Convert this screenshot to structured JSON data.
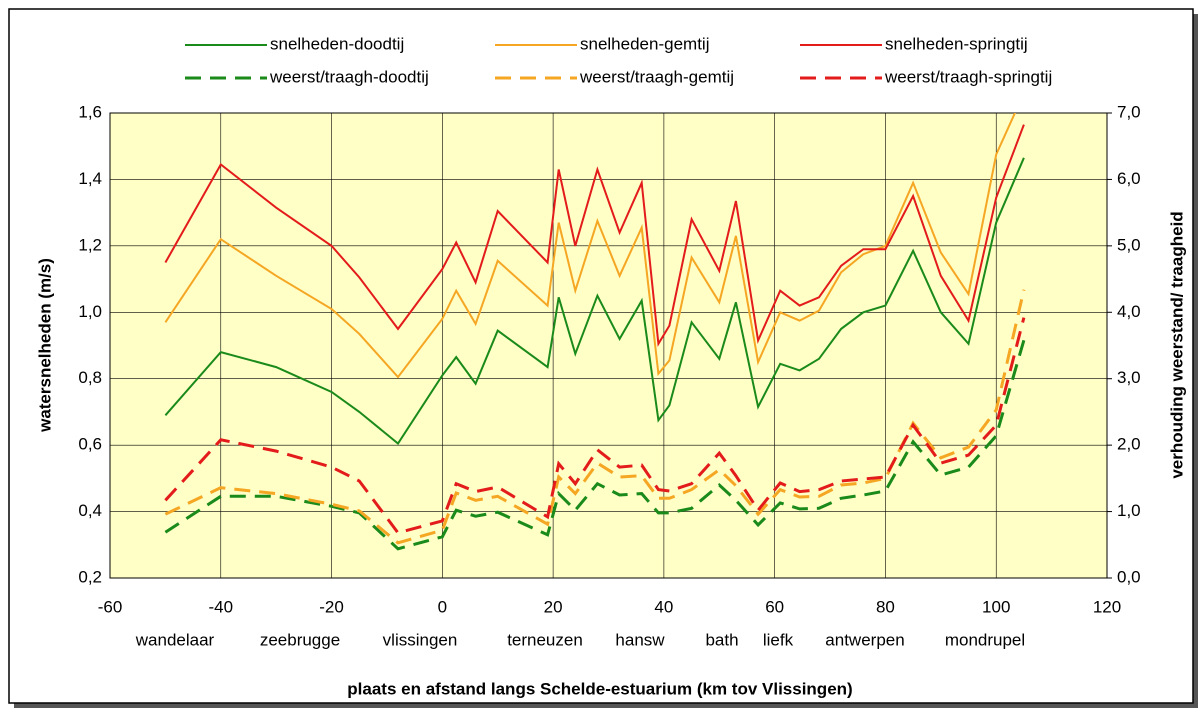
{
  "chart_data": {
    "type": "line",
    "y_label": "watersnelheden (m/s)",
    "y2_label": "verhouding weerstand/ traagheid",
    "x_label": "plaats en afstand  langs Schelde-estuarium (km tov Vlissingen)",
    "locations": [
      "wandelaar",
      "zeebrugge",
      "vlissingen",
      "terneuzen",
      "hansw",
      "bath",
      "liefk",
      "antwerpen",
      "mondrupel"
    ],
    "x": [
      -50,
      -40,
      -30,
      -20,
      -15,
      -8,
      0,
      2.5,
      6,
      10,
      19,
      21,
      24,
      28,
      32,
      36,
      39,
      41,
      45,
      50,
      53,
      57,
      61,
      64.5,
      68,
      72,
      76,
      80,
      85,
      90,
      95,
      100,
      105
    ],
    "xlim": [
      -60,
      120
    ],
    "xticks": [
      -60,
      -40,
      -20,
      0,
      20,
      40,
      60,
      80,
      100,
      120
    ],
    "ylim": [
      0.2,
      1.6
    ],
    "yticks": [
      {
        "value": 0.2,
        "label": "0,2"
      },
      {
        "value": 0.4,
        "label": "0,4"
      },
      {
        "value": 0.6,
        "label": "0,6"
      },
      {
        "value": 0.8,
        "label": "0,8"
      },
      {
        "value": 1.0,
        "label": "1,0"
      },
      {
        "value": 1.2,
        "label": "1,2"
      },
      {
        "value": 1.4,
        "label": "1,4"
      },
      {
        "value": 1.6,
        "label": "1,6"
      }
    ],
    "y2lim": [
      0,
      7
    ],
    "y2ticks": [
      {
        "value": 0,
        "label": "0,0"
      },
      {
        "value": 1,
        "label": "1,0"
      },
      {
        "value": 2,
        "label": "2,0"
      },
      {
        "value": 3,
        "label": "3,0"
      },
      {
        "value": 4,
        "label": "4,0"
      },
      {
        "value": 5,
        "label": "5,0"
      },
      {
        "value": 6,
        "label": "6,0"
      },
      {
        "value": 7,
        "label": "7,0"
      }
    ],
    "grid": true,
    "series": [
      {
        "name": "snelheden-doodtij",
        "color": "#1a8a1a",
        "dashed": false,
        "values": [
          0.69,
          0.88,
          0.835,
          0.76,
          0.7,
          0.605,
          0.81,
          0.865,
          0.785,
          0.945,
          0.835,
          1.045,
          0.875,
          1.05,
          0.92,
          1.035,
          0.675,
          0.72,
          0.97,
          0.86,
          1.03,
          0.715,
          0.845,
          0.825,
          0.86,
          0.95,
          1.0,
          1.02,
          1.185,
          1.0,
          0.905,
          1.27,
          1.465
        ]
      },
      {
        "name": "snelheden-gemtij",
        "color": "#f5a623",
        "dashed": false,
        "values": [
          0.97,
          1.22,
          1.11,
          1.01,
          0.935,
          0.805,
          0.98,
          1.065,
          0.965,
          1.155,
          1.02,
          1.27,
          1.065,
          1.275,
          1.11,
          1.255,
          0.815,
          0.855,
          1.165,
          1.03,
          1.23,
          0.85,
          1.0,
          0.975,
          1.005,
          1.12,
          1.175,
          1.2,
          1.39,
          1.18,
          1.055,
          1.475,
          1.66
        ]
      },
      {
        "name": "snelheden-springtij",
        "color": "#e31b1b",
        "dashed": false,
        "values": [
          1.15,
          1.445,
          1.315,
          1.2,
          1.105,
          0.95,
          1.13,
          1.21,
          1.09,
          1.305,
          1.15,
          1.43,
          1.2,
          1.43,
          1.24,
          1.39,
          0.905,
          0.96,
          1.28,
          1.125,
          1.335,
          0.915,
          1.065,
          1.02,
          1.045,
          1.14,
          1.19,
          1.19,
          1.35,
          1.11,
          0.975,
          1.345,
          1.565
        ]
      },
      {
        "name": "weerst/traagh-doodtij",
        "color": "#1a8a1a",
        "dashed": true,
        "axis": "y2",
        "values": [
          0.69,
          1.23,
          1.23,
          1.08,
          0.98,
          0.44,
          0.62,
          1.02,
          0.93,
          0.99,
          0.65,
          1.27,
          1.02,
          1.42,
          1.25,
          1.27,
          0.98,
          0.98,
          1.05,
          1.4,
          1.17,
          0.8,
          1.13,
          1.04,
          1.05,
          1.2,
          1.25,
          1.31,
          2.05,
          1.55,
          1.67,
          2.14,
          3.58
        ]
      },
      {
        "name": "weerst/traagh-gemtij",
        "color": "#f5a623",
        "dashed": true,
        "axis": "y2",
        "values": [
          0.96,
          1.36,
          1.27,
          1.11,
          1.01,
          0.53,
          0.72,
          1.28,
          1.17,
          1.23,
          0.81,
          1.52,
          1.27,
          1.73,
          1.52,
          1.54,
          1.2,
          1.2,
          1.33,
          1.63,
          1.39,
          0.96,
          1.33,
          1.22,
          1.23,
          1.4,
          1.43,
          1.5,
          2.33,
          1.81,
          1.97,
          2.53,
          4.34
        ]
      },
      {
        "name": "weerst/traagh-springtij",
        "color": "#e31b1b",
        "dashed": true,
        "axis": "y2",
        "values": [
          1.17,
          2.08,
          1.91,
          1.67,
          1.46,
          0.68,
          0.86,
          1.42,
          1.3,
          1.37,
          0.92,
          1.72,
          1.42,
          1.93,
          1.67,
          1.7,
          1.33,
          1.31,
          1.42,
          1.88,
          1.54,
          1.02,
          1.43,
          1.3,
          1.33,
          1.46,
          1.49,
          1.52,
          2.3,
          1.73,
          1.85,
          2.3,
          3.92
        ]
      }
    ]
  }
}
